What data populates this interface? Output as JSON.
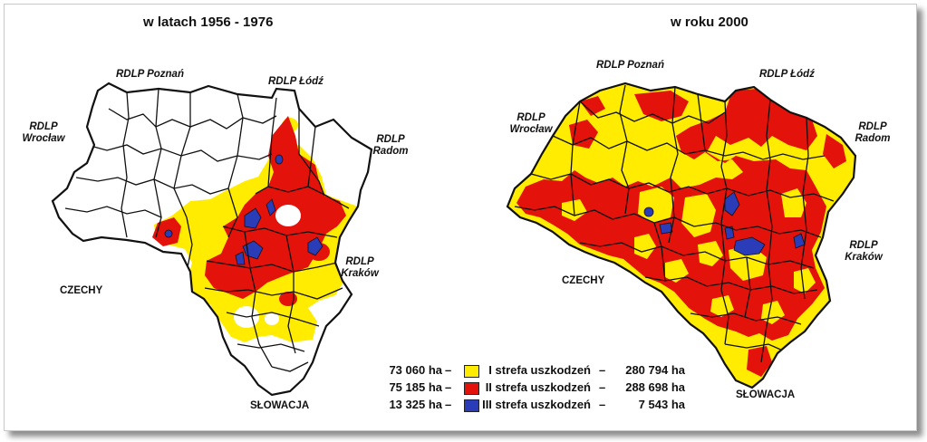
{
  "titles": {
    "left": "w latach 1956 - 1976",
    "right": "w roku 2000"
  },
  "labels": {
    "rdlp_poznan": "RDLP Poznań",
    "rdlp_lodz": "RDLP Łódź",
    "rdlp_wroclaw": "RDLP Wrocław",
    "rdlp_radom": "RDLP Radom",
    "rdlp_krakow": "RDLP Kraków",
    "czechy": "CZECHY",
    "slowacja": "SŁOWACJA"
  },
  "legend": [
    {
      "left_ha": "73 060 ha",
      "dash_left": "–",
      "zone": "I strefa uszkodzeń",
      "dash_right": "–",
      "right_ha": "280 794 ha",
      "color": "#ffec00"
    },
    {
      "left_ha": "75 185 ha",
      "dash_left": "–",
      "zone": "II strefa uszkodzeń",
      "dash_right": "–",
      "right_ha": "288 698 ha",
      "color": "#e3120b"
    },
    {
      "left_ha": "13 325 ha",
      "dash_left": "–",
      "zone": "III strefa uszkodzeń",
      "dash_right": "–",
      "right_ha": "7 543 ha",
      "color": "#2b3cb8"
    }
  ],
  "colors": {
    "zone1": "#ffec00",
    "zone2": "#e3120b",
    "zone3": "#2b3cb8",
    "border": "#111111",
    "background": "#ffffff"
  }
}
